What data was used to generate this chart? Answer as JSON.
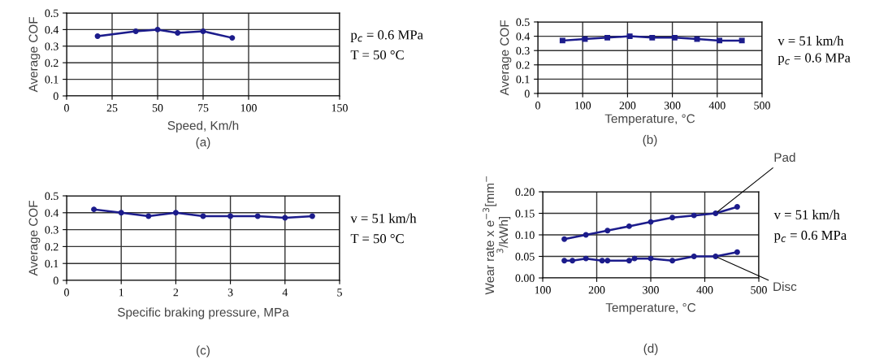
{
  "chart_data": [
    {
      "type": "line",
      "title": "(a)",
      "xlabel": "Speed, Km/h",
      "ylabel": "Average COF",
      "x": [
        17,
        38,
        50,
        61,
        75,
        91
      ],
      "series": [
        {
          "color": "#1c1c8c",
          "values": [
            0.36,
            0.39,
            0.4,
            0.38,
            0.39,
            0.35
          ]
        }
      ],
      "xlim": [
        0,
        150
      ],
      "xticks": [
        0,
        25,
        50,
        75,
        100,
        150
      ],
      "ylim": [
        0,
        0.5
      ],
      "yticks": [
        0,
        0.1,
        0.2,
        0.3,
        0.4,
        0.5
      ],
      "grid": true,
      "marker": "circle",
      "annotations": [
        "p$_{c}$ = 0.6 MPa",
        "T = 50 °C"
      ]
    },
    {
      "type": "line",
      "title": "(b)",
      "xlabel": "Temperature, °C",
      "ylabel": "Average COF",
      "x": [
        55,
        105,
        155,
        205,
        255,
        305,
        355,
        405,
        455
      ],
      "series": [
        {
          "color": "#1c1c8c",
          "values": [
            0.37,
            0.38,
            0.39,
            0.4,
            0.39,
            0.39,
            0.38,
            0.37,
            0.37
          ]
        }
      ],
      "xlim": [
        0,
        500
      ],
      "xticks": [
        0,
        100,
        200,
        300,
        400,
        500
      ],
      "ylim": [
        0,
        0.5
      ],
      "yticks": [
        0,
        0.1,
        0.2,
        0.3,
        0.4,
        0.5
      ],
      "grid": true,
      "marker": "square",
      "annotations": [
        "v = 51 km/h",
        "p$_{c}$ = 0.6 MPa"
      ]
    },
    {
      "type": "line",
      "title": "(c)",
      "xlabel": "Specific braking pressure, MPa",
      "ylabel": "Average COF",
      "x": [
        0.5,
        1,
        1.5,
        2,
        2.5,
        3,
        3.5,
        4,
        4.5
      ],
      "series": [
        {
          "color": "#1c1c8c",
          "values": [
            0.42,
            0.4,
            0.38,
            0.4,
            0.38,
            0.38,
            0.38,
            0.37,
            0.38
          ]
        }
      ],
      "xlim": [
        0,
        5
      ],
      "xticks": [
        0,
        1,
        2,
        3,
        4,
        5
      ],
      "ylim": [
        0,
        0.5
      ],
      "yticks": [
        0,
        0.1,
        0.2,
        0.3,
        0.4,
        0.5
      ],
      "grid": true,
      "marker": "circle",
      "annotations": [
        "v = 51 km/h",
        "T = 50 °C"
      ]
    },
    {
      "type": "line",
      "title": "(d)",
      "xlabel": "Temperature, °C",
      "ylabel": "Wear rate x e$^{−3}$[mm$^{−}$\n$^{3}$/kWh]",
      "series": [
        {
          "name": "Pad",
          "color": "#1c1c8c",
          "x": [
            140,
            180,
            220,
            260,
            300,
            340,
            380,
            420,
            460
          ],
          "values": [
            0.09,
            0.1,
            0.11,
            0.12,
            0.13,
            0.14,
            0.145,
            0.15,
            0.165
          ]
        },
        {
          "name": "Disc",
          "color": "#1c1c8c",
          "x": [
            140,
            155,
            180,
            210,
            220,
            260,
            270,
            300,
            340,
            380,
            420,
            460
          ],
          "values": [
            0.04,
            0.04,
            0.045,
            0.04,
            0.04,
            0.04,
            0.045,
            0.045,
            0.04,
            0.05,
            0.05,
            0.06
          ]
        }
      ],
      "xlim": [
        100,
        500
      ],
      "xticks": [
        100,
        200,
        300,
        400,
        500
      ],
      "ylim": [
        0,
        0.2
      ],
      "yticks": [
        {
          "value": 0,
          "label": "0.00"
        },
        {
          "value": 0.05,
          "label": "0.05"
        },
        {
          "value": 0.1,
          "label": "0.10"
        },
        {
          "value": 0.15,
          "label": "0.15"
        },
        {
          "value": 0.2,
          "label": "0.20"
        }
      ],
      "grid": true,
      "marker": "circle",
      "annotations": [
        "v = 51 km/h",
        "p$_{c}$ = 0.6 MPa"
      ]
    }
  ]
}
